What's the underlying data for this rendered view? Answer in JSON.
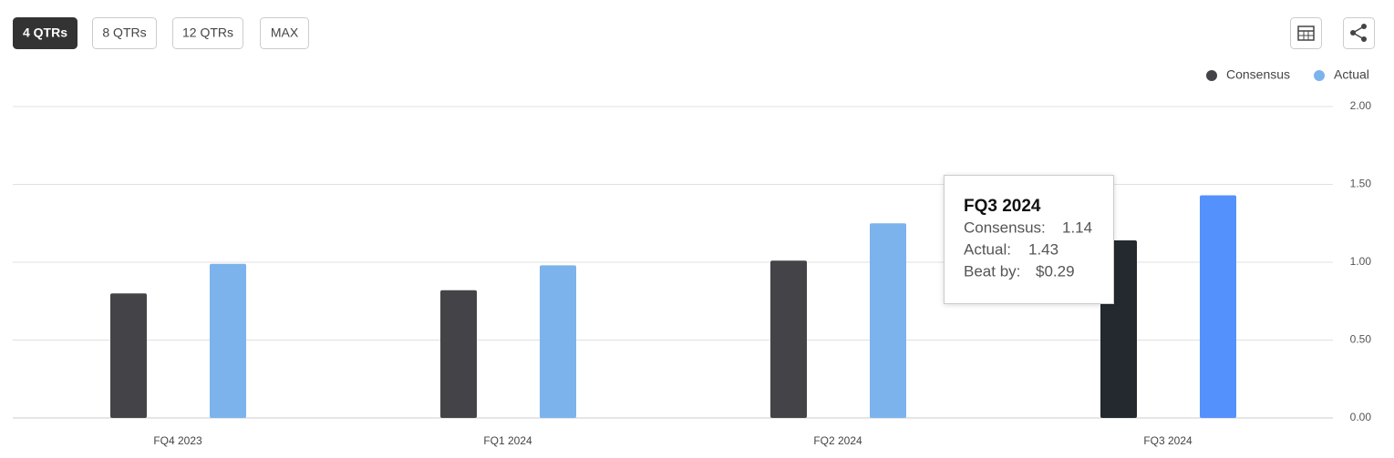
{
  "controls": {
    "periods": [
      "4 QTRs",
      "8 QTRs",
      "12 QTRs",
      "MAX"
    ],
    "active": 0
  },
  "chart_data": {
    "type": "bar",
    "categories": [
      "FQ4 2023",
      "FQ1 2024",
      "FQ2 2024",
      "FQ3 2024"
    ],
    "series": [
      {
        "name": "Consensus",
        "color": "#444448",
        "hover_color": "#23292f",
        "values": [
          0.8,
          0.82,
          1.01,
          1.14
        ]
      },
      {
        "name": "Actual",
        "color": "#7cb3ec",
        "hover_color": "#5591fc",
        "values": [
          0.99,
          0.98,
          1.25,
          1.43
        ]
      }
    ],
    "ylim": [
      0,
      2
    ],
    "yticks": [
      {
        "value": 0,
        "label": "0.00"
      },
      {
        "value": 0.5,
        "label": "0.50"
      },
      {
        "value": 1,
        "label": "1.00"
      },
      {
        "value": 1.5,
        "label": "1.50"
      },
      {
        "value": 2,
        "label": "2.00"
      }
    ],
    "grid": true,
    "legend": "top-right",
    "hovered": 3,
    "tooltip": {
      "labels": [
        "Consensus:",
        "Actual:",
        "Beat by:"
      ],
      "beat": "$0.29"
    }
  }
}
